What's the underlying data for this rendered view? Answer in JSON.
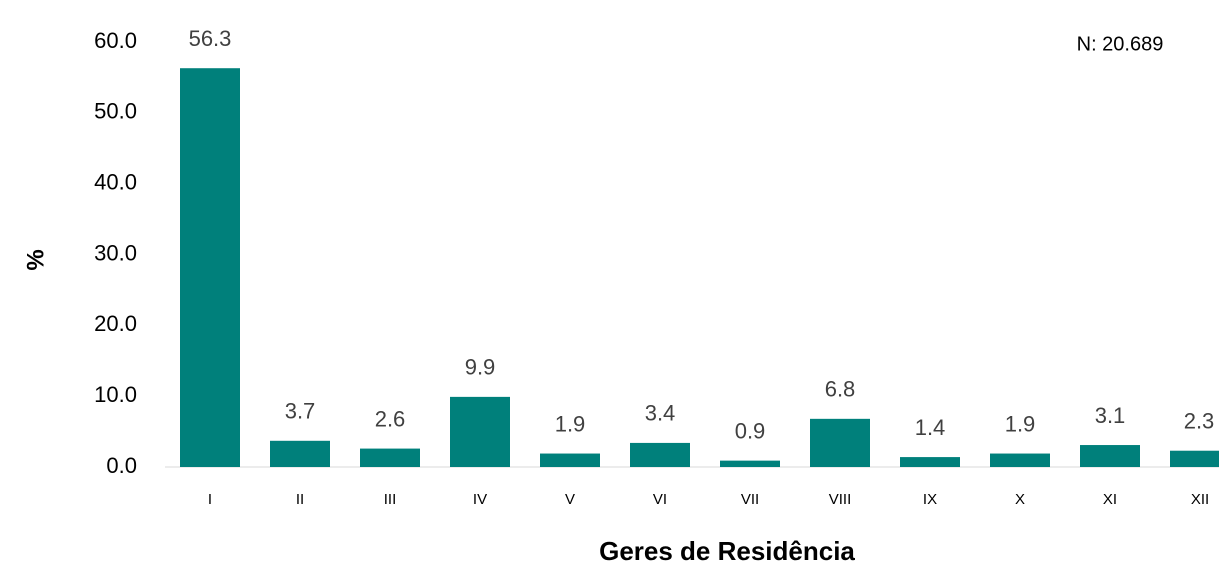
{
  "chart_data": {
    "type": "bar",
    "x_label": "Geres de Residência",
    "y_label": "%",
    "annotation": "N: 20.689",
    "categories": [
      "I",
      "II",
      "III",
      "IV",
      "V",
      "VI",
      "VII",
      "VIII",
      "IX",
      "X",
      "XI",
      "XII"
    ],
    "values": [
      56.3,
      3.7,
      2.6,
      9.9,
      1.9,
      3.4,
      0.9,
      6.8,
      1.4,
      1.9,
      3.1,
      2.3
    ],
    "color": "#00807b",
    "ylim": [
      0,
      60
    ],
    "yticks": [
      {
        "value": 0,
        "label": "0.0"
      },
      {
        "value": 10,
        "label": "10.0"
      },
      {
        "value": 20,
        "label": "20.0"
      },
      {
        "value": 30,
        "label": "30.0"
      },
      {
        "value": 40,
        "label": "40.0"
      },
      {
        "value": 50,
        "label": "50.0"
      },
      {
        "value": 60,
        "label": "60.0"
      }
    ]
  }
}
